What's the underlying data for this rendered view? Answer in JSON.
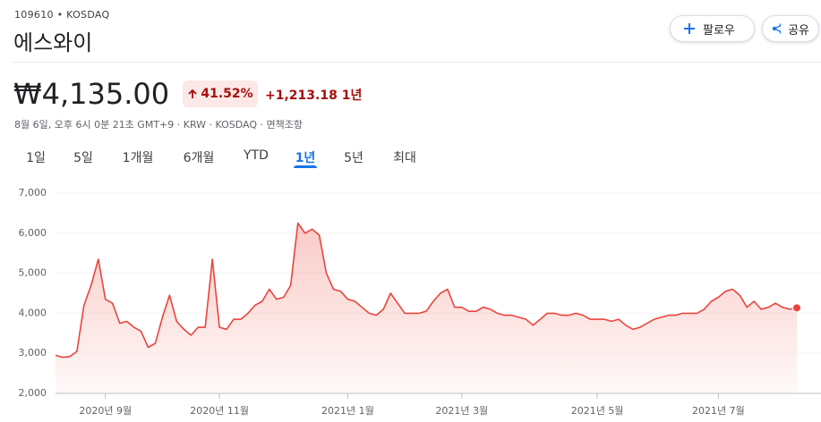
{
  "header": {
    "ticker": "109610 • KOSDAQ",
    "name": "에스와이",
    "buttons": {
      "follow": "팔로우",
      "share": "공유"
    }
  },
  "quote": {
    "price": "₩4,135.00",
    "change_pct": "41.52%",
    "change": "+1,213.18",
    "period": "1년",
    "timestamp": "8월 6일, 오후 6시 0분 21초 GMT+9 · KRW · KOSDAQ · ",
    "disclaimer": "면책조항"
  },
  "tabs": [
    {
      "label": "1일"
    },
    {
      "label": "5일"
    },
    {
      "label": "1개월"
    },
    {
      "label": "6개월"
    },
    {
      "label": "YTD"
    },
    {
      "label": "1년",
      "selected": true
    },
    {
      "label": "5년"
    },
    {
      "label": "최대"
    }
  ],
  "chart_data": {
    "type": "line",
    "color": "#e8453c",
    "grid": true,
    "ylim": [
      2000,
      7000
    ],
    "yticks": [
      {
        "value": 2000,
        "label": "2,000"
      },
      {
        "value": 3000,
        "label": "3,000"
      },
      {
        "value": 4000,
        "label": "4,000"
      },
      {
        "value": 5000,
        "label": "5,000"
      },
      {
        "value": 6000,
        "label": "6,000"
      },
      {
        "value": 7000,
        "label": "7,000"
      }
    ],
    "categories": [
      null,
      null,
      null,
      null,
      null,
      null,
      null,
      "2020년 9월",
      null,
      null,
      null,
      null,
      null,
      null,
      null,
      null,
      null,
      null,
      null,
      null,
      null,
      null,
      null,
      "2020년 11월",
      null,
      null,
      null,
      null,
      null,
      null,
      null,
      null,
      null,
      null,
      null,
      null,
      null,
      null,
      null,
      null,
      null,
      "2021년 1월",
      null,
      null,
      null,
      null,
      null,
      null,
      null,
      null,
      null,
      null,
      null,
      null,
      null,
      null,
      null,
      "2021년 3월",
      null,
      null,
      null,
      null,
      null,
      null,
      null,
      null,
      null,
      null,
      null,
      null,
      null,
      null,
      null,
      null,
      null,
      null,
      "2021년 5월",
      null,
      null,
      null,
      null,
      null,
      null,
      null,
      null,
      null,
      null,
      null,
      null,
      null,
      null,
      null,
      null,
      "2021년 7월",
      null,
      null,
      null,
      null,
      null,
      null,
      null,
      null,
      null,
      null,
      null
    ],
    "values": [
      2950,
      2900,
      2920,
      3050,
      4200,
      4700,
      5350,
      4350,
      4250,
      3750,
      3800,
      3650,
      3550,
      3150,
      3250,
      3900,
      4450,
      3800,
      3600,
      3450,
      3650,
      3650,
      5350,
      3650,
      3600,
      3850,
      3850,
      4000,
      4200,
      4300,
      4600,
      4350,
      4400,
      4700,
      6250,
      6000,
      6100,
      5950,
      5000,
      4600,
      4550,
      4350,
      4300,
      4150,
      4000,
      3950,
      4100,
      4500,
      4250,
      4000,
      4000,
      4000,
      4050,
      4300,
      4500,
      4600,
      4150,
      4150,
      4050,
      4050,
      4150,
      4100,
      4000,
      3950,
      3950,
      3900,
      3850,
      3700,
      3850,
      4000,
      4000,
      3950,
      3950,
      4000,
      3950,
      3850,
      3850,
      3850,
      3800,
      3850,
      3700,
      3600,
      3650,
      3750,
      3850,
      3900,
      3950,
      3950,
      4000,
      4000,
      4000,
      4100,
      4300,
      4400,
      4550,
      4600,
      4450,
      4150,
      4300,
      4100,
      4150,
      4250,
      4150,
      4100,
      4135
    ]
  }
}
